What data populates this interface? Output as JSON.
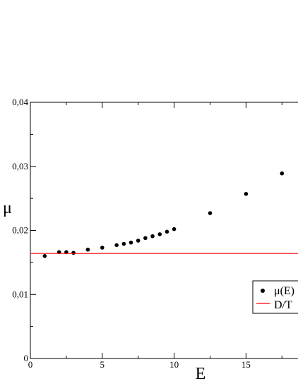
{
  "chart_data": {
    "type": "scatter",
    "xlabel": "E",
    "ylabel": "μ",
    "xlim": [
      0,
      19.5
    ],
    "ylim": [
      0,
      0.04
    ],
    "x_ticks": [
      {
        "value": 0,
        "label": "0"
      },
      {
        "value": 5,
        "label": "5"
      },
      {
        "value": 10,
        "label": "10"
      },
      {
        "value": 15,
        "label": "15"
      }
    ],
    "y_ticks": [
      {
        "value": 0,
        "label": "0"
      },
      {
        "value": 0.01,
        "label": "0,01"
      },
      {
        "value": 0.02,
        "label": "0,02"
      },
      {
        "value": 0.03,
        "label": "0,03"
      },
      {
        "value": 0.04,
        "label": "0,04"
      }
    ],
    "x_minor_step": 2.5,
    "y_minor_step": 0.005,
    "grid": false,
    "legend_position": "right",
    "series": [
      {
        "name": "μ(E)",
        "kind": "points",
        "color": "#000000",
        "x": [
          1,
          2,
          2.5,
          3,
          4,
          5,
          6,
          6.5,
          7,
          7.5,
          8,
          8.5,
          9,
          9.5,
          10,
          12.5,
          15,
          17.5
        ],
        "y": [
          0.016,
          0.0166,
          0.0166,
          0.0165,
          0.017,
          0.0173,
          0.0177,
          0.0179,
          0.0181,
          0.0184,
          0.0188,
          0.0191,
          0.0194,
          0.0198,
          0.0202,
          0.0227,
          0.0257,
          0.0289
        ]
      },
      {
        "name": "D/T",
        "kind": "hline",
        "color": "#ff0000",
        "y": 0.0164
      }
    ]
  }
}
